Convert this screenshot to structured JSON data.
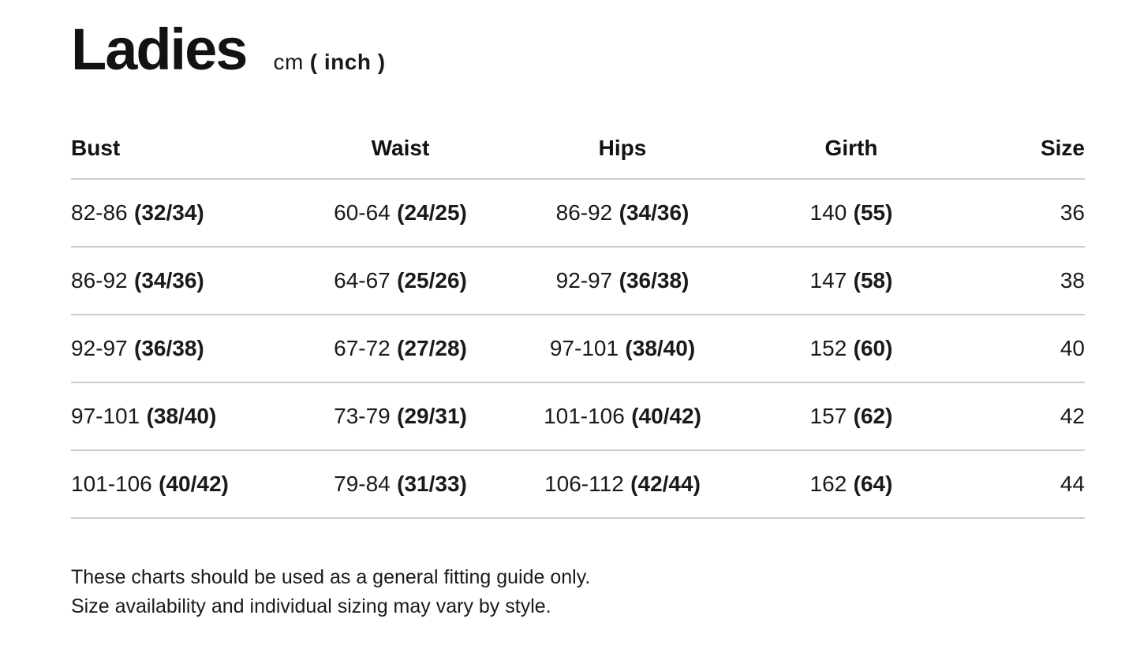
{
  "header": {
    "title": "Ladies",
    "unit_primary": "cm",
    "unit_secondary": "( inch )"
  },
  "table": {
    "headers": [
      "Bust",
      "Waist",
      "Hips",
      "Girth",
      "Size"
    ],
    "rows": [
      {
        "bust_cm": "82-86",
        "bust_in": "(32/34)",
        "waist_cm": "60-64",
        "waist_in": "(24/25)",
        "hips_cm": "86-92",
        "hips_in": "(34/36)",
        "girth_cm": "140",
        "girth_in": "(55)",
        "size": "36"
      },
      {
        "bust_cm": "86-92",
        "bust_in": "(34/36)",
        "waist_cm": "64-67",
        "waist_in": "(25/26)",
        "hips_cm": "92-97",
        "hips_in": "(36/38)",
        "girth_cm": "147",
        "girth_in": "(58)",
        "size": "38"
      },
      {
        "bust_cm": "92-97",
        "bust_in": "(36/38)",
        "waist_cm": "67-72",
        "waist_in": "(27/28)",
        "hips_cm": "97-101",
        "hips_in": "(38/40)",
        "girth_cm": "152",
        "girth_in": "(60)",
        "size": "40"
      },
      {
        "bust_cm": "97-101",
        "bust_in": "(38/40)",
        "waist_cm": "73-79",
        "waist_in": "(29/31)",
        "hips_cm": "101-106",
        "hips_in": "(40/42)",
        "girth_cm": "157",
        "girth_in": "(62)",
        "size": "42"
      },
      {
        "bust_cm": "101-106",
        "bust_in": "(40/42)",
        "waist_cm": "79-84",
        "waist_in": "(31/33)",
        "hips_cm": "106-112",
        "hips_in": "(42/44)",
        "girth_cm": "162",
        "girth_in": "(64)",
        "size": "44"
      }
    ]
  },
  "footer": {
    "line1": "These charts should be used as a general fitting guide only.",
    "line2": "Size availability and individual sizing may vary by style."
  },
  "colors": {
    "text": "#1a1a1a",
    "divider": "#cccccc",
    "background": "#ffffff"
  }
}
